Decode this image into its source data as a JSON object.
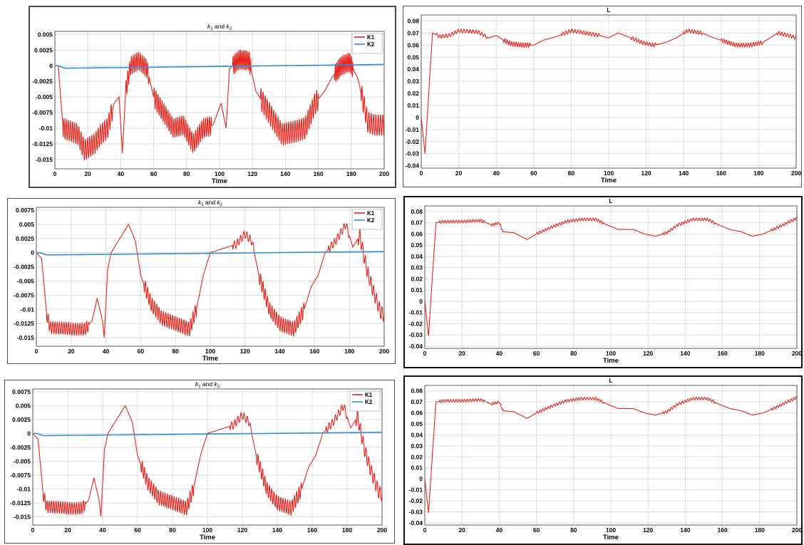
{
  "figure": {
    "layout": "3 rows x 2 columns of plot panels"
  },
  "chart_data": [
    {
      "id": "k-top",
      "type": "line",
      "title_base": "k",
      "title_mid": " and ",
      "title_sub1": "1",
      "title_sub2": "2",
      "xlabel": "Time",
      "xlim": [
        0,
        200
      ],
      "ylim": [
        -0.0165,
        0.0055
      ],
      "xticks": [
        0,
        20,
        40,
        60,
        80,
        100,
        120,
        140,
        160,
        180,
        200
      ],
      "xtick_labels": [
        "0",
        "20",
        "40",
        "60",
        "80",
        "100",
        "120",
        "140",
        "160",
        "180",
        "200"
      ],
      "yticks": [
        0.005,
        0.0025,
        0,
        -0.0025,
        -0.005,
        -0.0075,
        -0.01,
        -0.0125,
        -0.015
      ],
      "ytick_labels": [
        "0.005",
        "0.0025",
        "0",
        "-0.0025",
        "-0.005",
        "-0.0075",
        "-0.01",
        "-0.0125",
        "-0.015"
      ],
      "grid": true,
      "legend_position": "top-right",
      "series": [
        {
          "name": "K1",
          "color": "#e8231b",
          "style": "k-variant-a"
        },
        {
          "name": "K2",
          "color": "#2d8fd6",
          "style": "k2"
        }
      ]
    },
    {
      "id": "L-top",
      "type": "line",
      "title": "L",
      "xlabel": "Time",
      "xlim": [
        0,
        200
      ],
      "ylim": [
        -0.042,
        0.085
      ],
      "xticks": [
        0,
        20,
        40,
        60,
        80,
        100,
        120,
        140,
        160,
        180,
        200
      ],
      "xtick_labels": [
        "0",
        "20",
        "40",
        "60",
        "80",
        "100",
        "120",
        "140",
        "160",
        "180",
        "200"
      ],
      "yticks": [
        0.08,
        0.07,
        0.06,
        0.05,
        0.04,
        0.03,
        0.02,
        0.01,
        0,
        -0.01,
        -0.02,
        -0.03,
        -0.04
      ],
      "ytick_labels": [
        "0.08",
        "0.07",
        "0.06",
        "0.05",
        "0.04",
        "0.03",
        "0.02",
        "0.01",
        "0",
        "-0.01",
        "-0.02",
        "-0.03",
        "-0.04"
      ],
      "grid": true,
      "series": [
        {
          "color": "#e8231b",
          "style": "L-variant-a"
        }
      ]
    },
    {
      "id": "k-mid",
      "type": "line",
      "title_base": "k",
      "title_mid": " and ",
      "title_sub1": "1",
      "title_sub2": "2",
      "xlabel": "Time",
      "xlim": [
        0,
        200
      ],
      "ylim": [
        -0.0165,
        0.008
      ],
      "xticks": [
        0,
        20,
        40,
        60,
        80,
        100,
        120,
        140,
        160,
        180,
        200
      ],
      "xtick_labels": [
        "0",
        "20",
        "40",
        "60",
        "80",
        "100",
        "120",
        "140",
        "160",
        "180",
        "200"
      ],
      "yticks": [
        0.0075,
        0.005,
        0.0025,
        0,
        -0.0025,
        -0.005,
        -0.0075,
        -0.01,
        -0.0125,
        -0.015
      ],
      "ytick_labels": [
        "0.0075",
        "0.005",
        "0.0025",
        "0",
        "-0.0025",
        "-0.005",
        "-0.0075",
        "-0.01",
        "-0.0125",
        "-0.015"
      ],
      "grid": true,
      "legend_position": "top-right",
      "series": [
        {
          "name": "K1",
          "color": "#e8231b",
          "style": "k-variant-b"
        },
        {
          "name": "K2",
          "color": "#2d8fd6",
          "style": "k2"
        }
      ]
    },
    {
      "id": "L-mid",
      "type": "line",
      "title": "L",
      "xlabel": "Time",
      "xlim": [
        0,
        200
      ],
      "ylim": [
        -0.042,
        0.085
      ],
      "xticks": [
        0,
        20,
        40,
        60,
        80,
        100,
        120,
        140,
        160,
        180,
        200
      ],
      "xtick_labels": [
        "0",
        "20",
        "40",
        "60",
        "80",
        "100",
        "120",
        "140",
        "160",
        "180",
        "200"
      ],
      "yticks": [
        0.08,
        0.07,
        0.06,
        0.05,
        0.04,
        0.03,
        0.02,
        0.01,
        0,
        -0.01,
        -0.02,
        -0.03,
        -0.04
      ],
      "ytick_labels": [
        "0.08",
        "0.07",
        "0.06",
        "0.05",
        "0.04",
        "0.03",
        "0.02",
        "0.01",
        "0",
        "-0.01",
        "-0.02",
        "-0.03",
        "-0.04"
      ],
      "grid": true,
      "series": [
        {
          "color": "#e8231b",
          "style": "L-variant-b"
        }
      ]
    },
    {
      "id": "k-bot",
      "type": "line",
      "title_base": "k",
      "title_mid": " and ",
      "title_sub1": "1",
      "title_sub2": "2",
      "xlabel": "Time",
      "xlim": [
        0,
        200
      ],
      "ylim": [
        -0.0165,
        0.008
      ],
      "xticks": [
        0,
        20,
        40,
        60,
        80,
        100,
        120,
        140,
        160,
        180,
        200
      ],
      "xtick_labels": [
        "0",
        "20",
        "40",
        "60",
        "80",
        "100",
        "120",
        "140",
        "160",
        "180",
        "200"
      ],
      "yticks": [
        0.0075,
        0.005,
        0.0025,
        0,
        -0.0025,
        -0.005,
        -0.0075,
        -0.01,
        -0.0125,
        -0.015
      ],
      "ytick_labels": [
        "0.0075",
        "0.005",
        "0.0025",
        "0",
        "-0.0025",
        "-0.005",
        "-0.0075",
        "-0.01",
        "-0.0125",
        "-0.015"
      ],
      "grid": true,
      "legend_position": "top-right",
      "series": [
        {
          "name": "K1",
          "color": "#e8231b",
          "style": "k-variant-b"
        },
        {
          "name": "K2",
          "color": "#2d8fd6",
          "style": "k2"
        }
      ]
    },
    {
      "id": "L-bot",
      "type": "line",
      "title": "L",
      "xlabel": "Time",
      "xlim": [
        0,
        200
      ],
      "ylim": [
        -0.042,
        0.085
      ],
      "xticks": [
        0,
        20,
        40,
        60,
        80,
        100,
        120,
        140,
        160,
        180,
        200
      ],
      "xtick_labels": [
        "0",
        "20",
        "40",
        "60",
        "80",
        "100",
        "120",
        "140",
        "160",
        "180",
        "200"
      ],
      "yticks": [
        0.08,
        0.07,
        0.06,
        0.05,
        0.04,
        0.03,
        0.02,
        0.01,
        0,
        -0.01,
        -0.02,
        -0.03,
        -0.04
      ],
      "ytick_labels": [
        "0.08",
        "0.07",
        "0.06",
        "0.05",
        "0.04",
        "0.03",
        "0.02",
        "0.01",
        "0",
        "-0.01",
        "-0.02",
        "-0.03",
        "-0.04"
      ],
      "grid": true,
      "series": [
        {
          "color": "#e8231b",
          "style": "L-variant-b"
        }
      ]
    }
  ]
}
